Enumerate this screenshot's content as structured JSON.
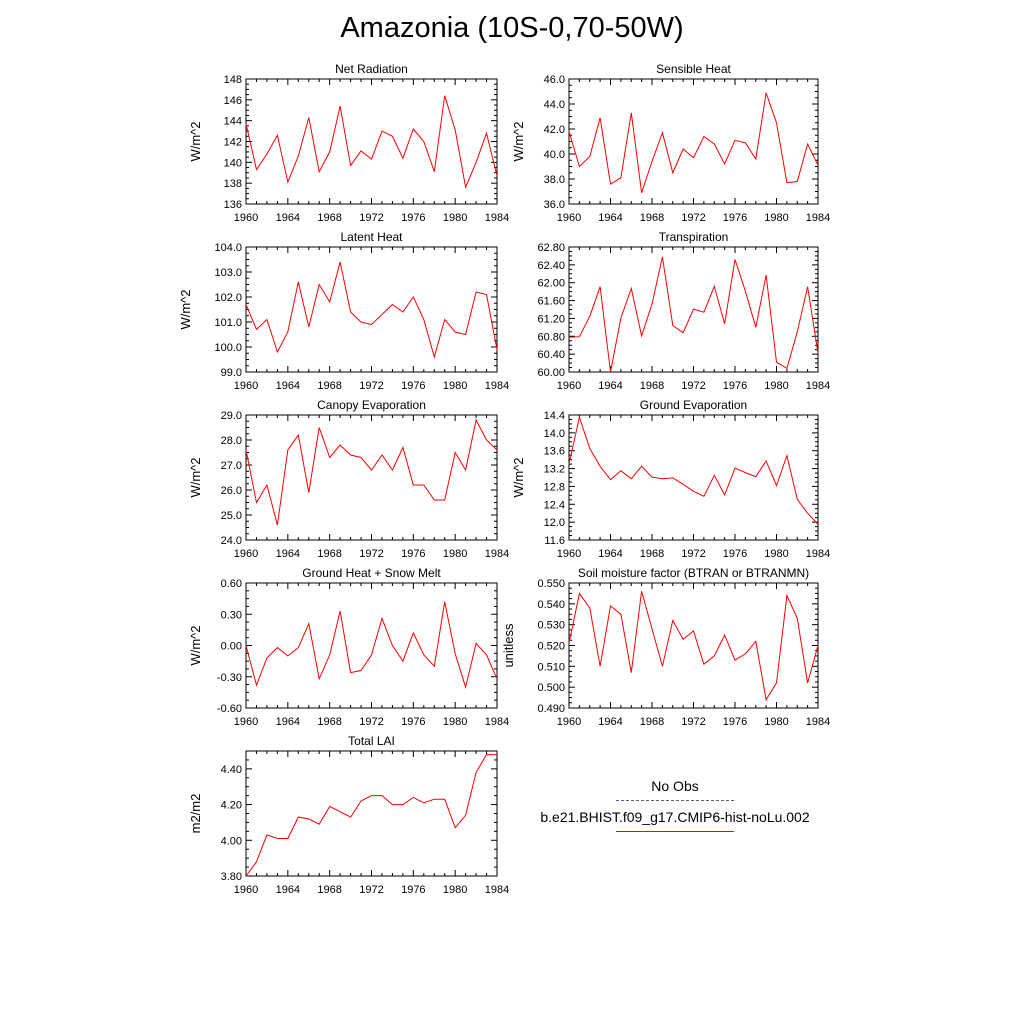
{
  "title": "Amazonia (10S-0,70-50W)",
  "colors": {
    "line": "#ff0000",
    "axis": "#000000",
    "obs_dash": "#5a5a8c"
  },
  "legend": {
    "obs_label": "No Obs",
    "model_label": "b.e21.BHIST.f09_g17.CMIP6-hist-noLu.002"
  },
  "chart_data": [
    {
      "type": "line",
      "title": "Net Radiation",
      "ylabel": "W/m^2",
      "xlim": [
        1960,
        1984
      ],
      "ylim": [
        136,
        148
      ],
      "xticks": [
        "1960",
        "1964",
        "1968",
        "1972",
        "1976",
        "1980",
        "1984"
      ],
      "yticks": [
        "136",
        "138",
        "140",
        "142",
        "144",
        "146",
        "148"
      ],
      "x": [
        1960,
        1961,
        1962,
        1963,
        1964,
        1965,
        1966,
        1967,
        1968,
        1969,
        1970,
        1971,
        1972,
        1973,
        1974,
        1975,
        1976,
        1977,
        1978,
        1979,
        1980,
        1981,
        1982,
        1983,
        1984
      ],
      "series": [
        {
          "values": [
            143.7,
            139.3,
            140.8,
            142.6,
            138.1,
            140.6,
            144.3,
            139.1,
            141.0,
            145.4,
            139.7,
            141.1,
            140.3,
            143.0,
            142.5,
            140.4,
            143.2,
            142.0,
            139.1,
            146.4,
            143.1,
            137.6,
            140.0,
            142.8,
            138.7
          ]
        }
      ]
    },
    {
      "type": "line",
      "title": "Sensible Heat",
      "ylabel": "W/m^2",
      "xlim": [
        1960,
        1984
      ],
      "ylim": [
        36.0,
        46.0
      ],
      "xticks": [
        "1960",
        "1964",
        "1968",
        "1972",
        "1976",
        "1980",
        "1984"
      ],
      "yticks": [
        "36.0",
        "38.0",
        "40.0",
        "42.0",
        "44.0",
        "46.0"
      ],
      "x": [
        1960,
        1961,
        1962,
        1963,
        1964,
        1965,
        1966,
        1967,
        1968,
        1969,
        1970,
        1971,
        1972,
        1973,
        1974,
        1975,
        1976,
        1977,
        1978,
        1979,
        1980,
        1981,
        1982,
        1983,
        1984
      ],
      "series": [
        {
          "values": [
            41.8,
            39.0,
            39.8,
            42.9,
            37.6,
            38.1,
            43.3,
            36.9,
            39.4,
            41.7,
            38.5,
            40.4,
            39.7,
            41.4,
            40.8,
            39.2,
            41.1,
            40.9,
            39.6,
            44.9,
            42.5,
            37.7,
            37.8,
            40.8,
            39.1
          ]
        }
      ]
    },
    {
      "type": "line",
      "title": "Latent Heat",
      "ylabel": "W/m^2",
      "xlim": [
        1960,
        1984
      ],
      "ylim": [
        99.0,
        104.0
      ],
      "xticks": [
        "1960",
        "1964",
        "1968",
        "1972",
        "1976",
        "1980",
        "1984"
      ],
      "yticks": [
        "99.0",
        "100.0",
        "101.0",
        "102.0",
        "103.0",
        "104.0"
      ],
      "x": [
        1960,
        1961,
        1962,
        1963,
        1964,
        1965,
        1966,
        1967,
        1968,
        1969,
        1970,
        1971,
        1972,
        1973,
        1974,
        1975,
        1976,
        1977,
        1978,
        1979,
        1980,
        1981,
        1982,
        1983,
        1984
      ],
      "series": [
        {
          "values": [
            101.7,
            100.7,
            101.1,
            99.8,
            100.6,
            102.6,
            100.8,
            102.5,
            101.8,
            103.4,
            101.4,
            101.0,
            100.9,
            101.3,
            101.7,
            101.4,
            102.0,
            101.1,
            99.6,
            101.1,
            100.6,
            100.5,
            102.2,
            102.1,
            99.9
          ]
        }
      ]
    },
    {
      "type": "line",
      "title": "Transpiration",
      "ylabel": "",
      "xlim": [
        1960,
        1984
      ],
      "ylim": [
        60.0,
        62.8
      ],
      "xticks": [
        "1960",
        "1964",
        "1968",
        "1972",
        "1976",
        "1980",
        "1984"
      ],
      "yticks": [
        "60.00",
        "60.40",
        "60.80",
        "61.20",
        "61.60",
        "62.00",
        "62.40",
        "62.80"
      ],
      "x": [
        1960,
        1961,
        1962,
        1963,
        1964,
        1965,
        1966,
        1967,
        1968,
        1969,
        1970,
        1971,
        1972,
        1973,
        1974,
        1975,
        1976,
        1977,
        1978,
        1979,
        1980,
        1981,
        1982,
        1983,
        1984
      ],
      "series": [
        {
          "values": [
            60.78,
            60.79,
            61.25,
            61.91,
            60.0,
            61.21,
            61.87,
            60.81,
            61.52,
            62.58,
            61.04,
            60.88,
            61.41,
            61.34,
            61.92,
            61.08,
            62.52,
            61.81,
            61.0,
            62.17,
            60.22,
            60.08,
            60.9,
            61.91,
            60.42
          ]
        }
      ]
    },
    {
      "type": "line",
      "title": "Canopy Evaporation",
      "ylabel": "W/m^2",
      "xlim": [
        1960,
        1984
      ],
      "ylim": [
        24.0,
        29.0
      ],
      "xticks": [
        "1960",
        "1964",
        "1968",
        "1972",
        "1976",
        "1980",
        "1984"
      ],
      "yticks": [
        "24.0",
        "25.0",
        "26.0",
        "27.0",
        "28.0",
        "29.0"
      ],
      "x": [
        1960,
        1961,
        1962,
        1963,
        1964,
        1965,
        1966,
        1967,
        1968,
        1969,
        1970,
        1971,
        1972,
        1973,
        1974,
        1975,
        1976,
        1977,
        1978,
        1979,
        1980,
        1981,
        1982,
        1983,
        1984
      ],
      "series": [
        {
          "values": [
            27.6,
            25.5,
            26.2,
            24.6,
            27.6,
            28.2,
            25.9,
            28.5,
            27.3,
            27.8,
            27.4,
            27.3,
            26.8,
            27.4,
            26.8,
            27.7,
            26.2,
            26.2,
            25.6,
            25.6,
            27.5,
            26.8,
            28.8,
            28.0,
            27.6
          ]
        }
      ]
    },
    {
      "type": "line",
      "title": "Ground Evaporation",
      "ylabel": "W/m^2",
      "xlim": [
        1960,
        1984
      ],
      "ylim": [
        11.6,
        14.4
      ],
      "xticks": [
        "1960",
        "1964",
        "1968",
        "1972",
        "1976",
        "1980",
        "1984"
      ],
      "yticks": [
        "11.6",
        "12.0",
        "12.4",
        "12.8",
        "13.2",
        "13.6",
        "14.0",
        "14.4"
      ],
      "x": [
        1960,
        1961,
        1962,
        1963,
        1964,
        1965,
        1966,
        1967,
        1968,
        1969,
        1970,
        1971,
        1972,
        1973,
        1974,
        1975,
        1976,
        1977,
        1978,
        1979,
        1980,
        1981,
        1982,
        1983,
        1984
      ],
      "series": [
        {
          "values": [
            13.3,
            14.35,
            13.65,
            13.25,
            12.95,
            13.15,
            12.97,
            13.25,
            13.01,
            12.97,
            12.99,
            12.85,
            12.69,
            12.58,
            13.05,
            12.61,
            13.21,
            13.11,
            13.02,
            13.37,
            12.82,
            13.49,
            12.51,
            12.2,
            11.95
          ]
        }
      ]
    },
    {
      "type": "line",
      "title": "Ground Heat + Snow Melt",
      "ylabel": "W/m^2",
      "xlim": [
        1960,
        1984
      ],
      "ylim": [
        -0.6,
        0.6
      ],
      "xticks": [
        "1960",
        "1964",
        "1968",
        "1972",
        "1976",
        "1980",
        "1984"
      ],
      "yticks": [
        "-0.60",
        "-0.30",
        "0.00",
        "0.30",
        "0.60"
      ],
      "x": [
        1960,
        1961,
        1962,
        1963,
        1964,
        1965,
        1966,
        1967,
        1968,
        1969,
        1970,
        1971,
        1972,
        1973,
        1974,
        1975,
        1976,
        1977,
        1978,
        1979,
        1980,
        1981,
        1982,
        1983,
        1984
      ],
      "series": [
        {
          "values": [
            0.0,
            -0.38,
            -0.12,
            -0.02,
            -0.1,
            -0.02,
            0.21,
            -0.32,
            -0.09,
            0.33,
            -0.26,
            -0.24,
            -0.09,
            0.26,
            0.0,
            -0.15,
            0.12,
            -0.09,
            -0.2,
            0.42,
            -0.08,
            -0.4,
            0.02,
            -0.09,
            -0.32
          ]
        }
      ]
    },
    {
      "type": "line",
      "title": "Soil moisture factor (BTRAN or BTRANMN)",
      "ylabel": "unitless",
      "xlim": [
        1960,
        1984
      ],
      "ylim": [
        0.49,
        0.55
      ],
      "xticks": [
        "1960",
        "1964",
        "1968",
        "1972",
        "1976",
        "1980",
        "1984"
      ],
      "yticks": [
        "0.490",
        "0.500",
        "0.510",
        "0.520",
        "0.530",
        "0.540",
        "0.550"
      ],
      "x": [
        1960,
        1961,
        1962,
        1963,
        1964,
        1965,
        1966,
        1967,
        1968,
        1969,
        1970,
        1971,
        1972,
        1973,
        1974,
        1975,
        1976,
        1977,
        1978,
        1979,
        1980,
        1981,
        1982,
        1983,
        1984
      ],
      "series": [
        {
          "values": [
            0.521,
            0.545,
            0.538,
            0.51,
            0.539,
            0.535,
            0.507,
            0.546,
            0.528,
            0.51,
            0.532,
            0.523,
            0.527,
            0.511,
            0.515,
            0.525,
            0.513,
            0.516,
            0.522,
            0.494,
            0.502,
            0.544,
            0.533,
            0.502,
            0.52
          ]
        }
      ]
    },
    {
      "type": "line",
      "title": "Total LAI",
      "ylabel": "m2/m2",
      "xlim": [
        1960,
        1984
      ],
      "ylim": [
        3.8,
        4.5
      ],
      "xticks": [
        "1960",
        "1964",
        "1968",
        "1972",
        "1976",
        "1980",
        "1984"
      ],
      "yticks": [
        "3.80",
        "4.00",
        "4.20",
        "4.40"
      ],
      "x": [
        1960,
        1961,
        1962,
        1963,
        1964,
        1965,
        1966,
        1967,
        1968,
        1969,
        1970,
        1971,
        1972,
        1973,
        1974,
        1975,
        1976,
        1977,
        1978,
        1979,
        1980,
        1981,
        1982,
        1983,
        1984
      ],
      "series": [
        {
          "values": [
            3.8,
            3.88,
            4.03,
            4.01,
            4.01,
            4.13,
            4.12,
            4.09,
            4.19,
            4.16,
            4.13,
            4.22,
            4.25,
            4.25,
            4.2,
            4.2,
            4.24,
            4.21,
            4.23,
            4.23,
            4.07,
            4.14,
            4.38,
            4.48,
            4.48
          ]
        }
      ]
    }
  ]
}
